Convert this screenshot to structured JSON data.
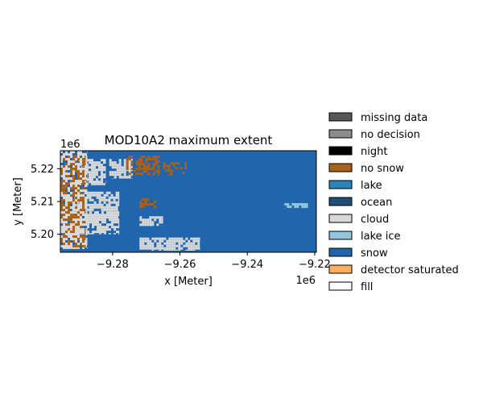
{
  "chart_data": {
    "type": "heatmap",
    "title": "MOD10A2 maximum extent",
    "xlabel": "x [Meter]",
    "ylabel": "y [Meter]",
    "x_offset_label": "1e6",
    "y_offset_label": "1e6",
    "xlim": [
      -9.2955,
      -9.2195
    ],
    "ylim": [
      5.1945,
      5.2255
    ],
    "x_ticks": [
      -9.28,
      -9.26,
      -9.24,
      -9.22
    ],
    "x_tick_labels": [
      "−9.28",
      "−9.26",
      "−9.24",
      "−9.22"
    ],
    "y_ticks": [
      5.2,
      5.21,
      5.22
    ],
    "y_tick_labels": [
      "5.20",
      "5.21",
      "5.22"
    ],
    "grid": false,
    "legend_position": "outside right",
    "legend": [
      {
        "label": "missing data",
        "color": "#595959"
      },
      {
        "label": "no decision",
        "color": "#8c8c8c"
      },
      {
        "label": "night",
        "color": "#000000"
      },
      {
        "label": "no snow",
        "color": "#a6611a"
      },
      {
        "label": "lake",
        "color": "#2b83ba"
      },
      {
        "label": "ocean",
        "color": "#1f4e79"
      },
      {
        "label": "cloud",
        "color": "#d9d9d9"
      },
      {
        "label": "lake ice",
        "color": "#92c5de"
      },
      {
        "label": "snow",
        "color": "#2166ac"
      },
      {
        "label": "detector saturated",
        "color": "#fdae61"
      },
      {
        "label": "fill",
        "color": "#ffffff"
      }
    ],
    "dominant_class": "snow",
    "regions": [
      {
        "class": "cloud",
        "desc": "western strip",
        "x": [
          -9.2955,
          -9.2875
        ],
        "y": [
          5.1955,
          5.2255
        ]
      },
      {
        "class": "cloud",
        "desc": "lower-left lobe",
        "x": [
          -9.2955,
          -9.278
        ],
        "y": [
          5.2,
          5.207
        ]
      },
      {
        "class": "cloud",
        "desc": "diagonal band",
        "x": [
          -9.292,
          -9.278
        ],
        "y": [
          5.207,
          5.213
        ]
      },
      {
        "class": "cloud",
        "desc": "upper diagonal band",
        "x": [
          -9.29,
          -9.282
        ],
        "y": [
          5.215,
          5.223
        ]
      },
      {
        "class": "cloud",
        "desc": "upper-left patch",
        "x": [
          -9.281,
          -9.274
        ],
        "y": [
          5.217,
          5.223
        ]
      },
      {
        "class": "cloud",
        "desc": "middle streak",
        "x": [
          -9.272,
          -9.265
        ],
        "y": [
          5.2025,
          5.2055
        ]
      },
      {
        "class": "cloud",
        "desc": "bottom streak",
        "x": [
          -9.272,
          -9.254
        ],
        "y": [
          5.195,
          5.199
        ]
      },
      {
        "class": "no snow",
        "desc": "western stripes",
        "x": [
          -9.2955,
          -9.288
        ],
        "y": [
          5.196,
          5.224
        ]
      },
      {
        "class": "no snow",
        "desc": "upper patch",
        "x": [
          -9.276,
          -9.266
        ],
        "y": [
          5.218,
          5.224
        ]
      },
      {
        "class": "no snow",
        "desc": "upper-middle patch",
        "x": [
          -9.265,
          -9.258
        ],
        "y": [
          5.218,
          5.222
        ]
      },
      {
        "class": "no snow",
        "desc": "middle specks",
        "x": [
          -9.272,
          -9.267
        ],
        "y": [
          5.208,
          5.211
        ]
      },
      {
        "class": "lake ice",
        "desc": "right patch",
        "x": [
          -9.229,
          -9.222
        ],
        "y": [
          5.208,
          5.2095
        ]
      }
    ]
  }
}
